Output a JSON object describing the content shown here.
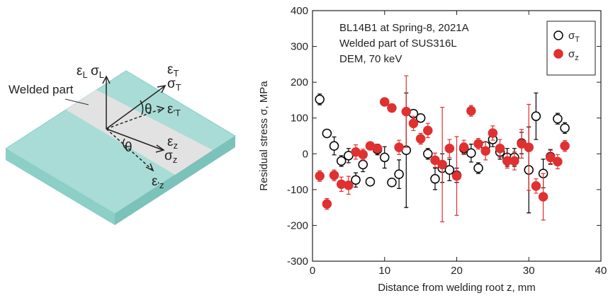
{
  "diagram": {
    "labels": [
      "εL",
      "σL",
      "εT",
      "σT",
      "ε'T",
      "θ",
      "εz",
      "σz",
      "ε'z",
      "θ"
    ],
    "part_label": "Welded part"
  },
  "chart_data": {
    "type": "scatter",
    "annotations": [
      "BL14B1 at Spring-8, 2021A",
      "Welded part of SUS316L",
      "DEM, 70 keV"
    ],
    "xlabel": "Distance from welding root z, mm",
    "ylabel": "Residual stress σ, MPa",
    "xlim": [
      0,
      40
    ],
    "ylim": [
      -300,
      400
    ],
    "xticks": [
      0,
      10,
      20,
      30,
      40
    ],
    "yticks": [
      -300,
      -200,
      -100,
      0,
      100,
      200,
      300,
      400
    ],
    "legend": "upper right",
    "x": [
      1,
      2,
      3,
      4,
      5,
      6,
      7,
      8,
      9,
      10,
      11,
      12,
      13,
      14,
      15,
      16,
      17,
      18,
      19,
      20,
      21,
      22,
      23,
      24,
      25,
      26,
      27,
      28,
      29,
      30,
      31,
      32,
      33,
      34,
      35
    ],
    "series": [
      {
        "name": "σT",
        "color": "#000000",
        "marker": "open",
        "values": [
          152,
          57,
          22,
          -20,
          -5,
          -73,
          -30,
          -78,
          12,
          -10,
          -80,
          -57,
          10,
          112,
          100,
          0,
          -70,
          -40,
          -45,
          -60,
          15,
          2,
          -40,
          22,
          40,
          5,
          -10,
          -10,
          30,
          -45,
          105,
          -55,
          -8,
          98,
          72
        ],
        "errors": [
          15,
          10,
          25,
          15,
          20,
          20,
          20,
          10,
          15,
          30,
          10,
          40,
          160,
          10,
          10,
          15,
          30,
          40,
          30,
          20,
          15,
          25,
          15,
          10,
          20,
          20,
          25,
          25,
          30,
          120,
          65,
          40,
          20,
          15,
          15
        ]
      },
      {
        "name": "σz",
        "color": "#e03030",
        "marker": "filled",
        "values": [
          -62,
          -140,
          -60,
          -85,
          -88,
          5,
          -2,
          22,
          15,
          145,
          128,
          18,
          118,
          85,
          42,
          65,
          -18,
          -30,
          15,
          -62,
          18,
          120,
          28,
          8,
          58,
          15,
          -20,
          -20,
          28,
          18,
          -90,
          -120,
          -10,
          -22,
          22
        ],
        "errors": [
          15,
          15,
          15,
          20,
          25,
          20,
          15,
          10,
          10,
          10,
          10,
          20,
          100,
          20,
          15,
          20,
          20,
          160,
          25,
          110,
          20,
          15,
          15,
          25,
          20,
          25,
          20,
          25,
          40,
          120,
          20,
          65,
          20,
          20,
          15
        ]
      }
    ]
  }
}
